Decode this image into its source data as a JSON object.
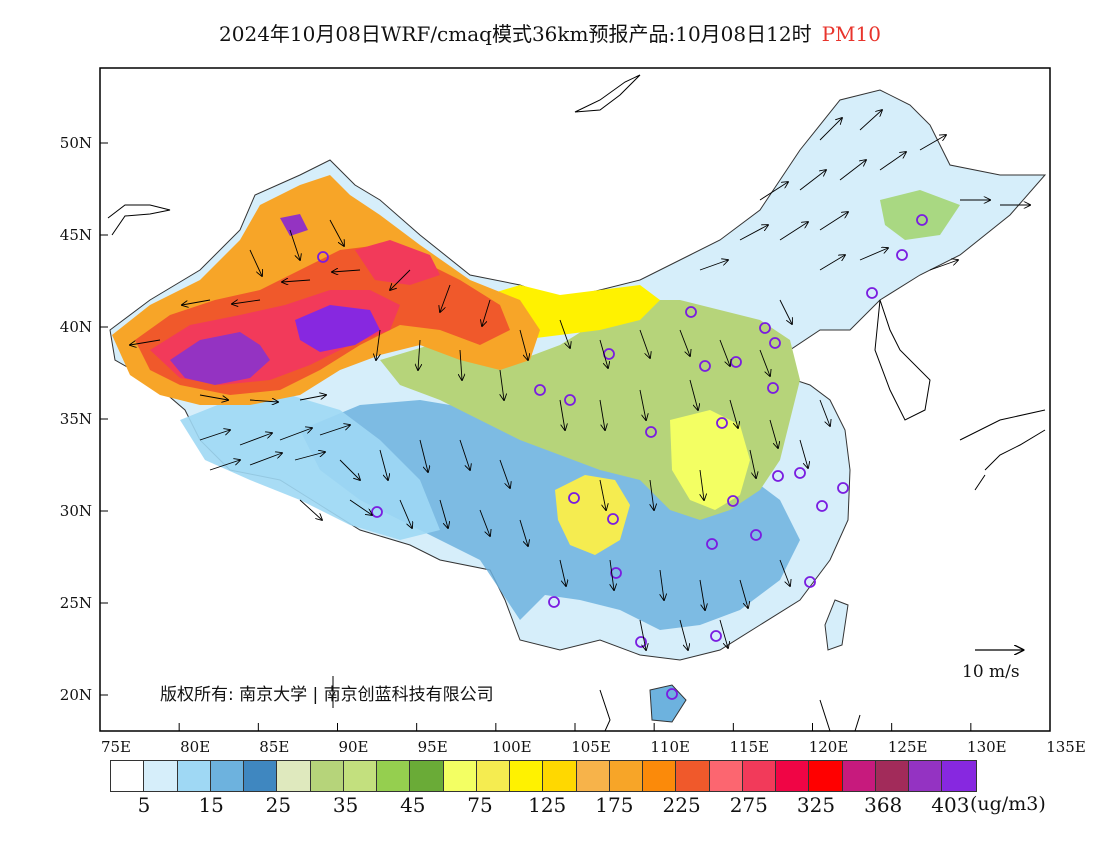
{
  "title": "2024年10月08日WRF/cmaq模式36km预报产品:10月08日12时",
  "pollutant": "PM10",
  "x_ticks": [
    "75E",
    "80E",
    "85E",
    "90E",
    "95E",
    "100E",
    "105E",
    "110E",
    "115E",
    "120E",
    "125E",
    "130E",
    "135E"
  ],
  "y_ticks": [
    "20N",
    "25N",
    "30N",
    "35N",
    "40N",
    "45N",
    "50N"
  ],
  "copyright": "版权所有: 南京大学 | 南京创蓝科技有限公司",
  "vector_scale_label": "10 m/s",
  "colorbar": {
    "colors": [
      "#ffffff",
      "#d6eefa",
      "#9fd8f4",
      "#6db2de",
      "#3f87c0",
      "#dfe9be",
      "#b6d47a",
      "#c3e07e",
      "#95cf4f",
      "#6aab37",
      "#f3ff63",
      "#f5ec50",
      "#fff200",
      "#ffd800",
      "#f7b34a",
      "#f7a528",
      "#fb8a0a",
      "#f0592b",
      "#fc6670",
      "#f23a5a",
      "#f00545",
      "#ff0000",
      "#c71a7d",
      "#a22b5a",
      "#9433c2",
      "#8728e0"
    ],
    "labels": [
      "5",
      "15",
      "25",
      "35",
      "45",
      "75",
      "125",
      "175",
      "225",
      "275",
      "325",
      "368",
      "403"
    ],
    "units": "(ug/m3)"
  },
  "colors": {
    "title_accent": "#e8342c",
    "station_marker": "#7a1de0"
  }
}
